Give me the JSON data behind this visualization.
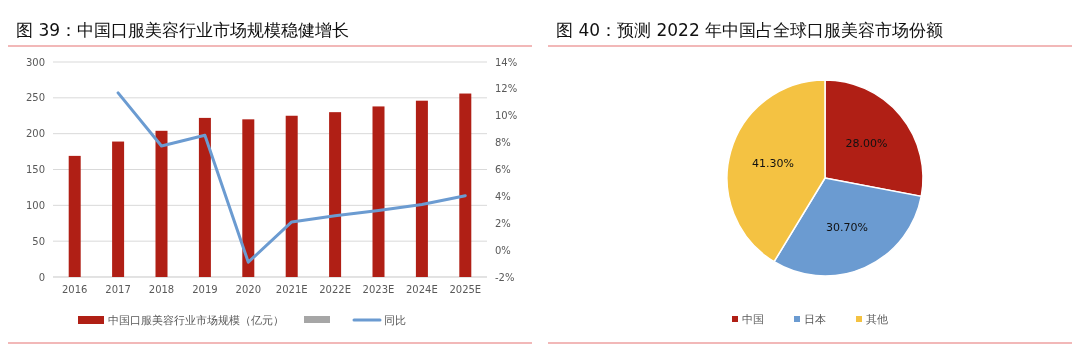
{
  "chart_data": [
    {
      "type": "bar",
      "title": "图 39：中国口服美容行业市场规模稳健增长",
      "categories": [
        "2016",
        "2017",
        "2018",
        "2019",
        "2020",
        "2021E",
        "2022E",
        "2023E",
        "2024E",
        "2025E"
      ],
      "series": [
        {
          "name": "中国口服美容行业市场规模（亿元）",
          "color": "#b01f15",
          "values": [
            169,
            189,
            204,
            222,
            220,
            225,
            230,
            238,
            246,
            256
          ]
        },
        {
          "name": "同比",
          "type": "line",
          "axis": "y2",
          "color": "#6b9bd1",
          "values": [
            null,
            11.7,
            7.75,
            8.55,
            -0.9,
            2.1,
            2.55,
            2.95,
            3.4,
            4.05
          ]
        }
      ],
      "ylim": [
        0,
        300
      ],
      "yticks": [
        0,
        50,
        100,
        150,
        200,
        250,
        300
      ],
      "y2lim": [
        -2,
        14
      ],
      "y2ticks": [
        {
          "value": -2,
          "label": "-2%"
        },
        {
          "value": 0,
          "label": "0%"
        },
        {
          "value": 2,
          "label": "2%"
        },
        {
          "value": 4,
          "label": "4%"
        },
        {
          "value": 6,
          "label": "6%"
        },
        {
          "value": 8,
          "label": "8%"
        },
        {
          "value": 10,
          "label": "10%"
        },
        {
          "value": 12,
          "label": "12%"
        },
        {
          "value": 14,
          "label": "14%"
        }
      ],
      "grid": "y",
      "legend": "bottom"
    },
    {
      "type": "pie",
      "title": "图 40：预测 2022 年中国占全球口服美容市场份额",
      "categories": [
        "中国",
        "日本",
        "其他"
      ],
      "values": [
        28,
        30.7,
        41.3
      ],
      "colors": [
        "#b01f15",
        "#6b9bd1",
        "#f4c242"
      ],
      "value_labels": [
        "28.00%",
        "30.70%",
        "41.30%"
      ],
      "legend": "bottom"
    }
  ]
}
